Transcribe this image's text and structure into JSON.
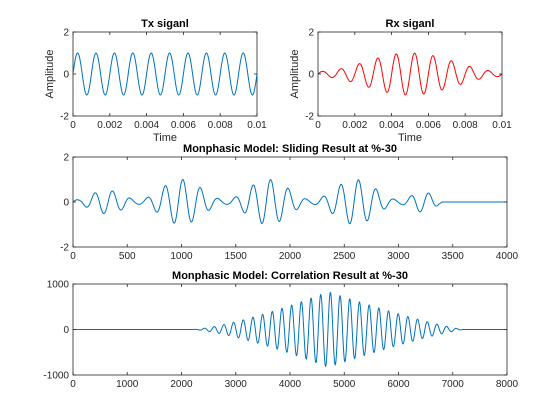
{
  "chart_data": [
    {
      "type": "line",
      "title": "Tx siganl",
      "xlabel": "Time",
      "ylabel": "Amplitude",
      "xlim": [
        0,
        0.01
      ],
      "ylim": [
        -2,
        2
      ],
      "xticks": [
        0,
        0.002,
        0.004,
        0.006,
        0.008,
        0.01
      ],
      "xtick_labels": [
        "0",
        "0.002",
        "0.004",
        "0.006",
        "0.008",
        "0.01"
      ],
      "yticks": [
        -2,
        0,
        2
      ],
      "ytick_labels": [
        "-2",
        "0",
        "2"
      ],
      "color": "#0072BD",
      "series": [
        {
          "signal": "sine",
          "amplitude": 1,
          "frequency_hz": 1000,
          "x_range": [
            0,
            0.01
          ]
        }
      ]
    },
    {
      "type": "line",
      "title": "Rx siganl",
      "xlabel": "Time",
      "ylabel": "Amplitude",
      "xlim": [
        0,
        0.01
      ],
      "ylim": [
        -2,
        2
      ],
      "xticks": [
        0,
        0.002,
        0.004,
        0.006,
        0.008,
        0.01
      ],
      "xtick_labels": [
        "0",
        "0.002",
        "0.004",
        "0.006",
        "0.008",
        "0.01"
      ],
      "yticks": [
        -2,
        0,
        2
      ],
      "ytick_labels": [
        "-2",
        "0",
        "2"
      ],
      "color": "#FF0000",
      "series": [
        {
          "signal": "windowed sine",
          "peak_amplitude": 1,
          "frequency_hz": 1000,
          "x_range": [
            0,
            0.01
          ],
          "envelope_peak_x": 0.005
        }
      ]
    },
    {
      "type": "line",
      "title": "Monphasic Model: Sliding Result at %-30",
      "xlabel": "",
      "ylabel": "",
      "xlim": [
        0,
        4000
      ],
      "ylim": [
        -2,
        2
      ],
      "xticks": [
        0,
        500,
        1000,
        1500,
        2000,
        2500,
        3000,
        3500,
        4000
      ],
      "xtick_labels": [
        "0",
        "500",
        "1000",
        "1500",
        "2000",
        "2500",
        "3000",
        "3500",
        "4000"
      ],
      "yticks": [
        -2,
        0,
        2
      ],
      "ytick_labels": [
        "-2",
        "0",
        "2"
      ],
      "color": "#0072BD",
      "series": [
        {
          "signal": "amplitude-modulated sine",
          "x_range": [
            0,
            3400
          ],
          "cycles": 21,
          "beat_period": 800,
          "amplitude_range": [
            0.1,
            1.0
          ],
          "flat_after_x": 3400
        }
      ]
    },
    {
      "type": "line",
      "title": "Monphasic Model: Correlation Result at %-30",
      "xlabel": "",
      "ylabel": "",
      "xlim": [
        0,
        8000
      ],
      "ylim": [
        -1000,
        1000
      ],
      "xticks": [
        0,
        1000,
        2000,
        3000,
        4000,
        5000,
        6000,
        7000,
        8000
      ],
      "xtick_labels": [
        "0",
        "1000",
        "2000",
        "3000",
        "4000",
        "5000",
        "6000",
        "7000",
        "8000"
      ],
      "yticks": [
        -1000,
        0,
        1000
      ],
      "ytick_labels": [
        "-1000",
        "0",
        "1000"
      ],
      "color": "#0072BD",
      "series": [
        {
          "signal": "oscillating correlation with envelope",
          "active_x_range": [
            2200,
            7200
          ],
          "cycles": 28,
          "peak_amplitude": 830,
          "peak_x": 4700
        }
      ]
    }
  ]
}
